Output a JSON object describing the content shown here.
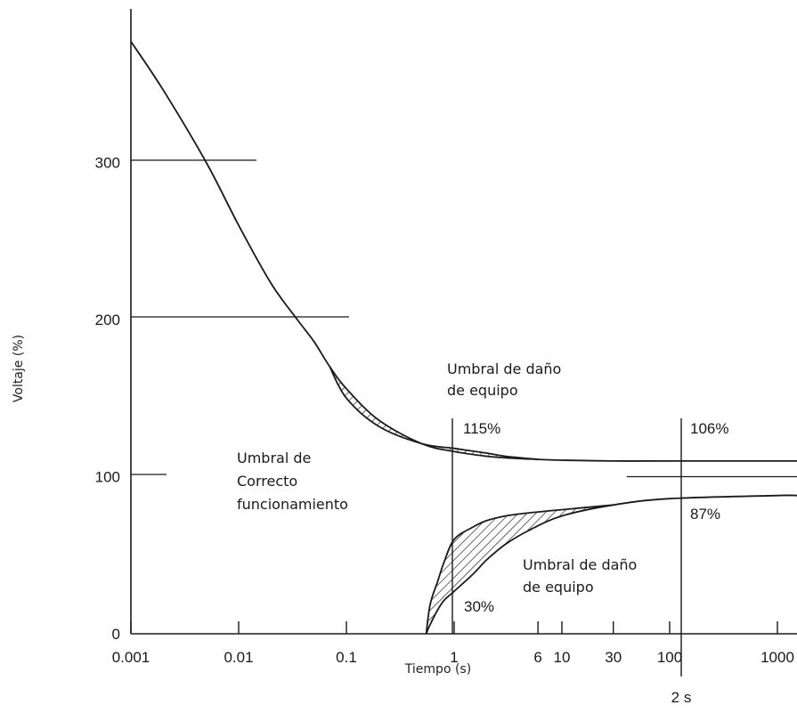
{
  "chart_data": {
    "type": "line",
    "xlabel": "Tiempo (s)",
    "ylabel": "Voltaje (%)",
    "x_scale": "log",
    "xlim": [
      0.001,
      2000
    ],
    "ylim": [
      0,
      400
    ],
    "x_ticks": [
      {
        "value": 0.001,
        "label": "0.001"
      },
      {
        "value": 0.01,
        "label": "0.01"
      },
      {
        "value": 0.1,
        "label": "0.1"
      },
      {
        "value": 1,
        "label": "1"
      },
      {
        "value": 6,
        "label": "6"
      },
      {
        "value": 10,
        "label": "10"
      },
      {
        "value": 30,
        "label": "30"
      },
      {
        "value": 100,
        "label": "100"
      },
      {
        "value": 1000,
        "label": "1000"
      }
    ],
    "y_ticks": [
      {
        "value": 0,
        "label": "0"
      },
      {
        "value": 100,
        "label": "100"
      },
      {
        "value": 200,
        "label": "200"
      },
      {
        "value": 300,
        "label": "300"
      }
    ],
    "marker_2s": {
      "value": 150,
      "label": "2 s"
    },
    "series": [
      {
        "key": "upper_outer",
        "x": [
          0.001,
          0.002,
          0.005,
          0.01,
          0.02,
          0.035,
          0.05,
          0.07,
          0.1,
          0.2,
          0.5,
          1,
          2,
          3,
          6,
          10,
          30,
          100,
          1000,
          2000
        ],
        "y": [
          377,
          346,
          300,
          260,
          223,
          200,
          186,
          170,
          156,
          136,
          121,
          116,
          113,
          112,
          111,
          110.5,
          110,
          110,
          110,
          110
        ]
      },
      {
        "key": "upper_inner",
        "x": [
          0.07,
          0.1,
          0.2,
          0.5,
          1,
          2,
          3,
          6
        ],
        "y": [
          170,
          150,
          132,
          121,
          118,
          115,
          113,
          111
        ]
      },
      {
        "key": "lower_outer",
        "x": [
          0.55,
          0.6,
          0.7,
          0.8,
          1,
          1.5,
          2,
          3,
          5,
          10,
          30,
          100,
          1000,
          2000
        ],
        "y": [
          0,
          6,
          15,
          21,
          27,
          38,
          47,
          57,
          66,
          75,
          82,
          86,
          88,
          88
        ]
      },
      {
        "key": "lower_inner",
        "x": [
          0.55,
          0.6,
          0.7,
          0.8,
          1,
          1.5,
          2,
          3,
          5,
          10,
          30
        ],
        "y": [
          0,
          19,
          33,
          45,
          60,
          68,
          72,
          75,
          77,
          79,
          82
        ]
      },
      {
        "key": "nominal",
        "x": [
          40,
          2000
        ],
        "y": [
          100,
          100
        ]
      }
    ],
    "annotations": {
      "upper_damage_l1": "Umbral de daño",
      "upper_damage_l2": "de equipo",
      "pct_115": "115%",
      "pct_106": "106%",
      "correct_l1": "Umbral de",
      "correct_l2": "Correcto",
      "correct_l3": "funcionamiento",
      "pct_87": "87%",
      "lower_damage_l1": "Umbral de daño",
      "lower_damage_l2": "de equipo",
      "pct_30": "30%"
    }
  }
}
